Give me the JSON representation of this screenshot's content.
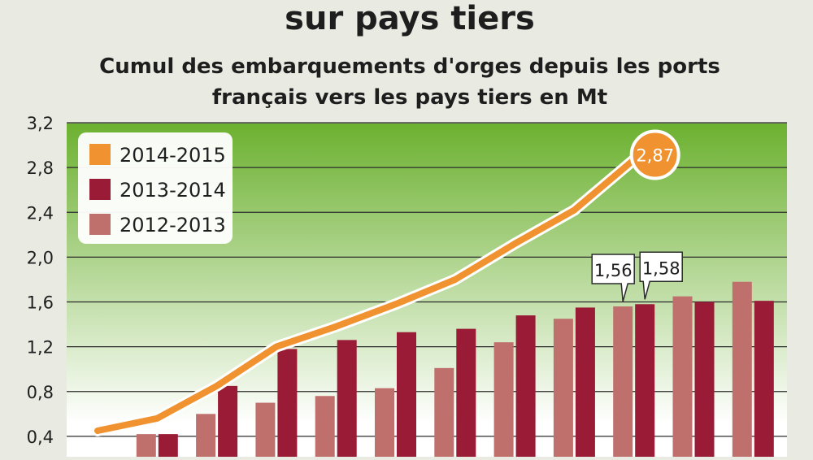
{
  "chart_data": {
    "type": "bar",
    "title": "sur pays tiers",
    "subtitle_lines": [
      "Cumul des embarquements d'orges depuis les ports",
      "français vers les pays tiers en Mt"
    ],
    "y_ticks": [
      "0,4",
      "0,8",
      "1,2",
      "1,6",
      "2,0",
      "2,4",
      "2,8",
      "3,2"
    ],
    "ylim": [
      0,
      3.2
    ],
    "grid": true,
    "legend_position": "top-left",
    "colors": {
      "line_2014_2015": "#f0922f",
      "bar_2013_2014": "#9a1b35",
      "bar_2012_2013": "#c0706c",
      "plot_top": "#6cb130",
      "plot_bottom": "#ffffff"
    },
    "series": [
      {
        "name": "2014-2015",
        "kind": "line",
        "values": [
          0.45,
          0.56,
          0.85,
          1.2,
          1.38,
          1.58,
          1.8,
          2.12,
          2.42,
          2.87,
          null,
          null
        ]
      },
      {
        "name": "2013-2014",
        "kind": "bar",
        "values": [
          null,
          0.42,
          0.85,
          1.18,
          1.26,
          1.33,
          1.36,
          1.48,
          1.55,
          1.58,
          1.6,
          1.61
        ]
      },
      {
        "name": "2012-2013",
        "kind": "bar",
        "values": [
          null,
          0.42,
          0.6,
          0.7,
          0.76,
          0.83,
          1.01,
          1.24,
          1.45,
          1.56,
          1.65,
          1.78
        ]
      }
    ],
    "annotations": [
      {
        "label": "2,87",
        "series": "2014-2015",
        "index": 9,
        "style": "circle"
      },
      {
        "label": "1,56",
        "series": "2012-2013",
        "index": 9,
        "style": "callout"
      },
      {
        "label": "1,58",
        "series": "2013-2014",
        "index": 9,
        "style": "callout"
      }
    ]
  }
}
